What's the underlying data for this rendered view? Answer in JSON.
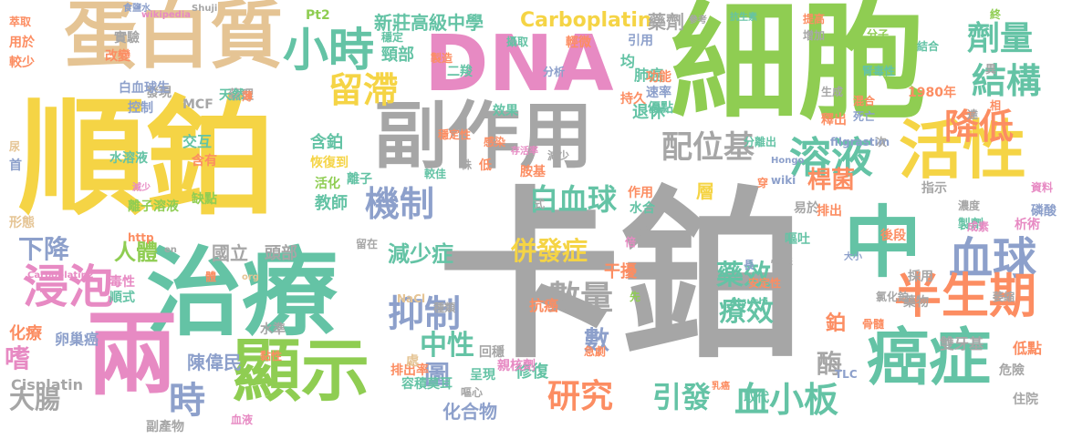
{
  "colors": {
    "gray": "#a6a6a6",
    "yellow": "#f5d445",
    "green": "#8fcd52",
    "teal": "#64c3a5",
    "pink": "#e78ac3",
    "orange": "#fc8d62",
    "blue": "#8da0cb",
    "tan": "#e5c494"
  },
  "words": [
    "卡鉑",
    "順鉑",
    "細胞",
    "治療",
    "DNA",
    "副作用",
    "蛋白質",
    "活性",
    "顯示",
    "兩",
    "中",
    "癌症",
    "血球",
    "浸泡",
    "小時",
    "留滯",
    "結構",
    "劑量",
    "降低",
    "溶液",
    "配位基",
    "半生期",
    "機制",
    "白血球",
    "抑制",
    "數量",
    "減少症",
    "併發症",
    "新莊高級中學",
    "Carboplatin",
    "藥劑",
    "1980年",
    "教師",
    "人體",
    "國立",
    "下降",
    "大腸",
    "嗜",
    "時",
    "圖",
    "研究",
    "中性",
    "引發",
    "血小板",
    "療效",
    "藥效",
    "數",
    "酶",
    "鉑",
    "陳偉民",
    "桿菌",
    "層",
    "干擾",
    "化合物",
    "修復",
    "肺癌",
    "退休",
    "頸部",
    "Cisplatin",
    "卵巢癌",
    "化療",
    "頭部",
    "萃取",
    "實驗",
    "用於",
    "較少",
    "改變",
    "發現",
    "藥理",
    "控制",
    "MCF",
    "交互",
    "含有",
    "水溶液",
    "缺點",
    "形態",
    "毒性",
    "順式",
    "含鉑",
    "恢復到",
    "活化",
    "減少",
    "wikipedia",
    "Pt2",
    "穩定",
    "攝取",
    "製造",
    "二羧",
    "分析",
    "輕微",
    "引用",
    "均",
    "功能",
    "速率",
    "優點",
    "持久",
    "效果",
    "感染",
    "存活率",
    "胺基",
    "株",
    "低",
    "方式",
    "作用",
    "水合",
    "性質",
    "抗生素",
    "參考",
    "提高",
    "增加",
    "腎毒性",
    "混合",
    "死亡",
    "釋出",
    "分離出",
    "Hongo",
    "filgrastim",
    "指示",
    "濃度",
    "製劑",
    "成素",
    "析術",
    "氯化鉑",
    "後段",
    "骨髓",
    "藥物",
    "雙牙基",
    "低點",
    "危險",
    "住院",
    "取代",
    "乳癌",
    "安定性",
    "嘔吐",
    "易於",
    "排出",
    "採用",
    "大小",
    "情形",
    "急劇",
    "抗癌",
    "回穩",
    "親核劑",
    "排出率",
    "容積莫耳",
    "呈現",
    "嘔心",
    "血液",
    "副產物",
    "白血球生",
    "天然",
    "食鹽水",
    "尿",
    "首",
    "http",
    "en",
    "體",
    "org",
    "Atsushi",
    "NaCl",
    "種類",
    "先",
    "倍",
    "處",
    "Carboplatin2",
    "萎縮",
    "資料",
    "磷酸",
    "長",
    "穿",
    "wiki",
    "次",
    "終",
    "異",
    "相",
    "達",
    "Shuji",
    "薄",
    "TLC",
    "黏性",
    "減少",
    "留在",
    "離子",
    "水準",
    "離子溶液",
    "穩定性",
    "較佳",
    "生成",
    "分子",
    "結合"
  ]
}
